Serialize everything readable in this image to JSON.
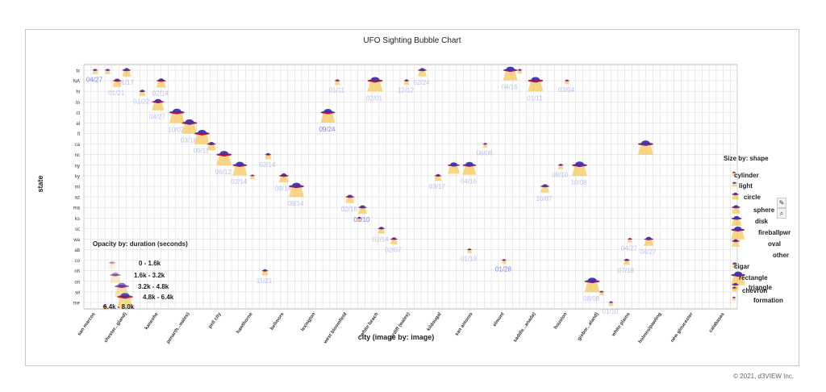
{
  "chart_data": {
    "type": "scatter",
    "title": "UFO Sighting Bubble Chart",
    "xlabel": "city (image by: image)",
    "ylabel": "state",
    "x_categories": [
      "san marcos",
      "chester...gland)",
      "kaneohe",
      "penarth...wales)",
      "pell city",
      "hawthorne",
      "bellmore",
      "lexington",
      "west bloomfield",
      "white beach",
      "cardiff (wales)",
      "kildougal",
      "san antonio",
      "elmont",
      "saddle...anada)",
      "houston",
      "gisbor...aland)",
      "white plains",
      "holmes/pawling",
      "new gloucester",
      "calabasas"
    ],
    "y_categories": [
      "tx",
      "NA",
      "hi",
      "tn",
      "ct",
      "al",
      "fl",
      "ca",
      "nc",
      "ny",
      "ky",
      "mi",
      "az",
      "ma",
      "ks",
      "sc",
      "wa",
      "ab",
      "co",
      "nh",
      "on",
      "wi",
      "me"
    ],
    "points": [
      {
        "xi": 0.1,
        "yi": 0,
        "s": 0.35,
        "label": "04/27",
        "la": 1.0
      },
      {
        "xi": 0.5,
        "yi": 0,
        "s": 0.35,
        "label": "",
        "la": 0
      },
      {
        "xi": 1.1,
        "yi": 0,
        "s": 0.55,
        "label": "01/17",
        "la": 0.5
      },
      {
        "xi": 0.8,
        "yi": 1,
        "s": 0.55,
        "label": "01/21",
        "la": 0.5
      },
      {
        "xi": 1.6,
        "yi": 2,
        "s": 0.4,
        "label": "01/22",
        "la": 0.5
      },
      {
        "xi": 2.2,
        "yi": 1,
        "s": 0.6,
        "label": "02/14",
        "la": 0.5
      },
      {
        "xi": 2.1,
        "yi": 3,
        "s": 0.75,
        "label": "04/27",
        "la": 0.5
      },
      {
        "xi": 2.7,
        "yi": 4,
        "s": 0.95,
        "label": "10/02",
        "la": 0.5
      },
      {
        "xi": 3.1,
        "yi": 5,
        "s": 0.95,
        "label": "03/16",
        "la": 0.5
      },
      {
        "xi": 3.5,
        "yi": 6,
        "s": 0.95,
        "label": "09/11",
        "la": 0.5
      },
      {
        "xi": 3.8,
        "yi": 7,
        "s": 0.55,
        "label": "",
        "la": 0
      },
      {
        "xi": 4.2,
        "yi": 8,
        "s": 0.95,
        "label": "06/12",
        "la": 0.5
      },
      {
        "xi": 4.7,
        "yi": 9,
        "s": 0.9,
        "label": "02/14",
        "la": 0.5
      },
      {
        "xi": 5.1,
        "yi": 10,
        "s": 0.3,
        "label": "",
        "la": 0
      },
      {
        "xi": 5.6,
        "yi": 8,
        "s": 0.4,
        "label": "02/14",
        "la": 0.5
      },
      {
        "xi": 6.1,
        "yi": 10,
        "s": 0.6,
        "label": "09/14",
        "la": 0.5
      },
      {
        "xi": 6.5,
        "yi": 11,
        "s": 0.95,
        "label": "08/14",
        "la": 0.5
      },
      {
        "xi": 5.5,
        "yi": 19,
        "s": 0.4,
        "label": "11/21",
        "la": 0.5
      },
      {
        "xi": 7.5,
        "yi": 4,
        "s": 0.9,
        "label": "09/24",
        "la": 1.0
      },
      {
        "xi": 7.8,
        "yi": 1,
        "s": 0.35,
        "label": "01/11",
        "la": 0.5
      },
      {
        "xi": 8.2,
        "yi": 12,
        "s": 0.55,
        "label": "02/18",
        "la": 0.5
      },
      {
        "xi": 8.6,
        "yi": 13,
        "s": 0.55,
        "label": "08/10",
        "la": 1.0
      },
      {
        "xi": 8.5,
        "yi": 14,
        "s": 0.3,
        "label": "",
        "la": 0
      },
      {
        "xi": 9.0,
        "yi": 1,
        "s": 0.95,
        "label": "02/01",
        "la": 0.5
      },
      {
        "xi": 9.2,
        "yi": 15,
        "s": 0.45,
        "label": "02/14",
        "la": 0.5
      },
      {
        "xi": 9.6,
        "yi": 16,
        "s": 0.45,
        "label": "02/07",
        "la": 0.5
      },
      {
        "xi": 10.0,
        "yi": 1,
        "s": 0.35,
        "label": "12/12",
        "la": 0.5
      },
      {
        "xi": 10.5,
        "yi": 0,
        "s": 0.55,
        "label": "02/24",
        "la": 0.5
      },
      {
        "xi": 11.0,
        "yi": 10,
        "s": 0.45,
        "label": "03/17",
        "la": 0.5
      },
      {
        "xi": 11.5,
        "yi": 9,
        "s": 0.75,
        "label": "",
        "la": 0
      },
      {
        "xi": 12.0,
        "yi": 9,
        "s": 0.85,
        "label": "04/16",
        "la": 0.5
      },
      {
        "xi": 12.5,
        "yi": 7,
        "s": 0.3,
        "label": "08/06",
        "la": 0.5
      },
      {
        "xi": 12.0,
        "yi": 17,
        "s": 0.3,
        "label": "01/19",
        "la": 0.5
      },
      {
        "xi": 13.1,
        "yi": 18,
        "s": 0.3,
        "label": "01/28",
        "la": 1.0
      },
      {
        "xi": 13.3,
        "yi": 0,
        "s": 0.9,
        "label": "04/16",
        "la": 0.5
      },
      {
        "xi": 13.6,
        "yi": 0,
        "s": 0.3,
        "label": "",
        "la": 0
      },
      {
        "xi": 14.1,
        "yi": 1,
        "s": 0.95,
        "label": "01/11",
        "la": 0.5
      },
      {
        "xi": 14.4,
        "yi": 11,
        "s": 0.55,
        "label": "10/07",
        "la": 0.5
      },
      {
        "xi": 15.1,
        "yi": 1,
        "s": 0.3,
        "label": "03/04",
        "la": 0.5
      },
      {
        "xi": 14.9,
        "yi": 9,
        "s": 0.35,
        "label": "08/10",
        "la": 0.5
      },
      {
        "xi": 15.5,
        "yi": 9,
        "s": 0.95,
        "label": "10/08",
        "la": 0.5
      },
      {
        "xi": 15.9,
        "yi": 20,
        "s": 0.95,
        "label": "08/08",
        "la": 0.5
      },
      {
        "xi": 16.2,
        "yi": 21,
        "s": 0.3,
        "label": "",
        "la": 0
      },
      {
        "xi": 16.5,
        "yi": 22,
        "s": 0.3,
        "label": "01/10",
        "la": 0.5
      },
      {
        "xi": 17.0,
        "yi": 18,
        "s": 0.4,
        "label": "07/18",
        "la": 0.5
      },
      {
        "xi": 17.1,
        "yi": 16,
        "s": 0.3,
        "label": "04/27",
        "la": 0.5
      },
      {
        "xi": 17.6,
        "yi": 7,
        "s": 0.95,
        "label": "",
        "la": 0
      },
      {
        "xi": 17.7,
        "yi": 16,
        "s": 0.6,
        "label": "04/27",
        "la": 0.5
      }
    ],
    "legend_opacity": {
      "title": "Opacity by: duration (seconds)",
      "items": [
        "0 - 1.6k",
        "1.6k - 3.2k",
        "3.2k - 4.8k",
        "4.8k - 6.4k",
        "6.4k - 8.0k"
      ],
      "placement": "bottom-left"
    },
    "legend_size": {
      "title": "Size by: shape",
      "items": [
        "cylinder",
        "light",
        "circle",
        "sphere",
        "disk",
        "fireball",
        "pwr",
        "oval",
        "other",
        "cigar",
        "rectangle",
        "triangle",
        "chevron",
        "formation"
      ],
      "placement": "right"
    },
    "grid": true,
    "colors": {
      "saucer_top": "#3a33b4",
      "saucer_rim": "#c8102e",
      "beam": "#f6c24a",
      "label": "#7c7fe6",
      "grid": "#dddddd"
    }
  },
  "footer": {
    "copyright": "© 2021, d3VIEW Inc."
  }
}
